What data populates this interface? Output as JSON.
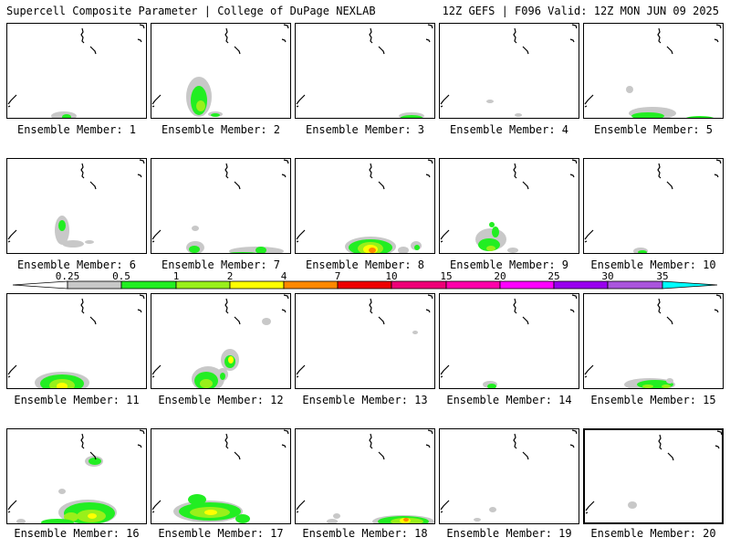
{
  "header": {
    "title_left": "Supercell Composite Parameter | College of DuPage NEXLAB",
    "title_right": "12Z GEFS | F096 Valid: 12Z MON JUN 09 2025"
  },
  "colors": {
    "c_025_05": "#c8c8c8",
    "c_05_1": "#22ee22",
    "c_1_2": "#99f01a",
    "c_2_4": "#ffff00",
    "c_4_7": "#ff8800",
    "c_7_10": "#ee0000",
    "c_10_15": "#ee0077",
    "c_15_20": "#ff00aa",
    "c_20_25": "#ff00ff",
    "c_25_30": "#9900ee",
    "c_30_35": "#aa55dd",
    "c_35_plus": "#00ffff"
  },
  "colorbar": {
    "labels": [
      "0.25",
      "0.5",
      "1",
      "2",
      "4",
      "7",
      "10",
      "15",
      "20",
      "25",
      "30",
      "35"
    ]
  },
  "members": [
    {
      "label": "Ensemble Member: 1"
    },
    {
      "label": "Ensemble Member: 2"
    },
    {
      "label": "Ensemble Member: 3"
    },
    {
      "label": "Ensemble Member: 4"
    },
    {
      "label": "Ensemble Member: 5"
    },
    {
      "label": "Ensemble Member: 6"
    },
    {
      "label": "Ensemble Member: 7"
    },
    {
      "label": "Ensemble Member: 8"
    },
    {
      "label": "Ensemble Member: 9"
    },
    {
      "label": "Ensemble Member: 10"
    },
    {
      "label": "Ensemble Member: 11"
    },
    {
      "label": "Ensemble Member: 12"
    },
    {
      "label": "Ensemble Member: 13"
    },
    {
      "label": "Ensemble Member: 14"
    },
    {
      "label": "Ensemble Member: 15"
    },
    {
      "label": "Ensemble Member: 16"
    },
    {
      "label": "Ensemble Member: 17"
    },
    {
      "label": "Ensemble Member: 18"
    },
    {
      "label": "Ensemble Member: 19"
    },
    {
      "label": "Ensemble Member: 20"
    }
  ]
}
